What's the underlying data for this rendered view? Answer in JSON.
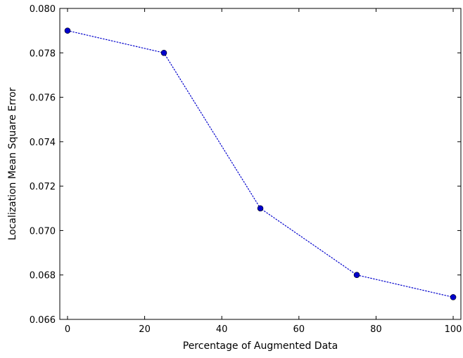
{
  "chart_data": {
    "type": "line",
    "title": "",
    "xlabel": "Percentage of Augmented Data",
    "ylabel": "Localization Mean Square Error",
    "x": [
      0,
      25,
      50,
      75,
      100
    ],
    "series": [
      {
        "values": [
          0.079,
          0.078,
          0.071,
          0.068,
          0.067
        ]
      }
    ],
    "xlim": [
      -2,
      102
    ],
    "ylim": [
      0.066,
      0.08
    ],
    "xticks": [
      0,
      20,
      40,
      60,
      80,
      100
    ],
    "xtick_labels": [
      "0",
      "20",
      "40",
      "60",
      "80",
      "100"
    ],
    "yticks": [
      0.066,
      0.068,
      0.07,
      0.072,
      0.074,
      0.076,
      0.078,
      0.08
    ],
    "ytick_labels": [
      "0.066",
      "0.068",
      "0.070",
      "0.072",
      "0.074",
      "0.076",
      "0.078",
      "0.080"
    ],
    "grid": false,
    "line_style": "dotted",
    "marker": "circle",
    "color": "#0000cc"
  }
}
